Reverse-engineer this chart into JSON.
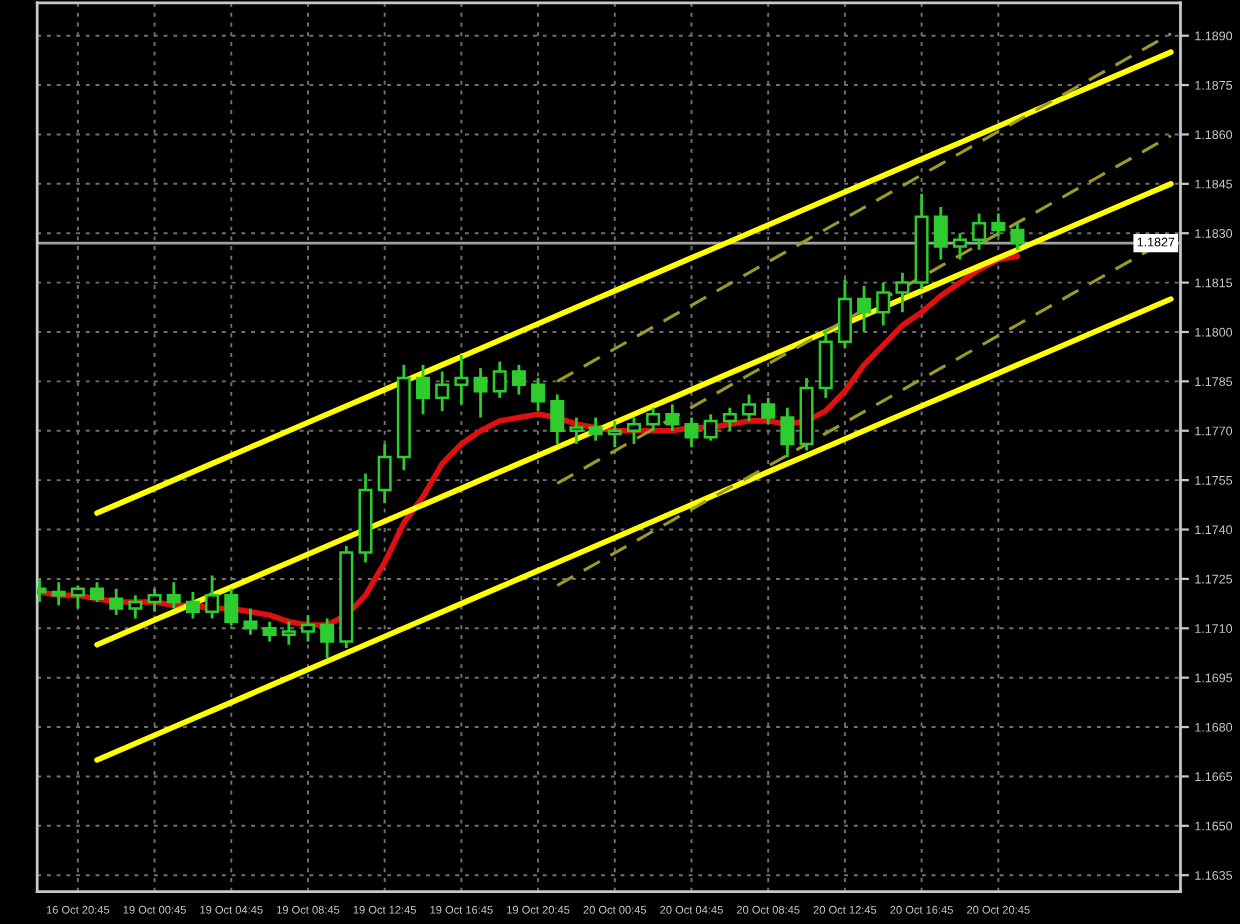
{
  "chart_data": {
    "type": "candlestick",
    "color": "#2ecc2e",
    "categories": [
      null,
      null,
      "16 Oct 20:45",
      null,
      null,
      null,
      "19 Oct 00:45",
      null,
      null,
      null,
      "19 Oct 04:45",
      null,
      null,
      null,
      "19 Oct 08:45",
      null,
      null,
      null,
      "19 Oct 12:45",
      null,
      null,
      null,
      "19 Oct 16:45",
      null,
      null,
      null,
      "19 Oct 20:45",
      null,
      null,
      null,
      "20 Oct 00:45",
      null,
      null,
      null,
      "20 Oct 04:45",
      null,
      null,
      null,
      "20 Oct 08:45",
      null,
      null,
      null,
      "20 Oct 12:45",
      null,
      null,
      null,
      "20 Oct 16:45",
      null,
      null,
      null,
      "20 Oct 20:45",
      null,
      null,
      null,
      null,
      null,
      null,
      null,
      null,
      null
    ],
    "ohlc": [
      [
        1.1722,
        1.1725,
        1.1718,
        1.1721
      ],
      [
        1.1721,
        1.1724,
        1.1717,
        1.172
      ],
      [
        1.172,
        1.1723,
        1.1716,
        1.1722
      ],
      [
        1.1722,
        1.1724,
        1.1718,
        1.1719
      ],
      [
        1.1719,
        1.1722,
        1.1714,
        1.1716
      ],
      [
        1.1716,
        1.172,
        1.1713,
        1.1718
      ],
      [
        1.1718,
        1.1722,
        1.1715,
        1.172
      ],
      [
        1.172,
        1.1724,
        1.1716,
        1.1718
      ],
      [
        1.1718,
        1.1721,
        1.1713,
        1.1715
      ],
      [
        1.1715,
        1.1726,
        1.1713,
        1.172
      ],
      [
        1.172,
        1.1722,
        1.1711,
        1.1712
      ],
      [
        1.1712,
        1.1716,
        1.1708,
        1.171
      ],
      [
        1.171,
        1.1712,
        1.1706,
        1.1708
      ],
      [
        1.1708,
        1.1712,
        1.1705,
        1.1709
      ],
      [
        1.1709,
        1.1714,
        1.1706,
        1.1711
      ],
      [
        1.1711,
        1.1713,
        1.1701,
        1.1706
      ],
      [
        1.1706,
        1.1735,
        1.1704,
        1.1733
      ],
      [
        1.1733,
        1.1757,
        1.173,
        1.1752
      ],
      [
        1.1752,
        1.1766,
        1.1748,
        1.1762
      ],
      [
        1.1762,
        1.179,
        1.1758,
        1.1786
      ],
      [
        1.1786,
        1.179,
        1.1775,
        1.178
      ],
      [
        1.178,
        1.1788,
        1.1776,
        1.1784
      ],
      [
        1.1784,
        1.1793,
        1.1778,
        1.1786
      ],
      [
        1.1786,
        1.1789,
        1.1774,
        1.1782
      ],
      [
        1.1782,
        1.1791,
        1.178,
        1.1788
      ],
      [
        1.1788,
        1.179,
        1.1781,
        1.1784
      ],
      [
        1.1784,
        1.1786,
        1.1776,
        1.1779
      ],
      [
        1.1779,
        1.1781,
        1.1766,
        1.177
      ],
      [
        1.177,
        1.1774,
        1.1766,
        1.1771
      ],
      [
        1.1771,
        1.1774,
        1.1767,
        1.1769
      ],
      [
        1.1769,
        1.1773,
        1.1765,
        1.177
      ],
      [
        1.177,
        1.1774,
        1.1766,
        1.1772
      ],
      [
        1.1772,
        1.1777,
        1.177,
        1.1775
      ],
      [
        1.1775,
        1.1778,
        1.177,
        1.1772
      ],
      [
        1.1772,
        1.1774,
        1.1765,
        1.1768
      ],
      [
        1.1768,
        1.1775,
        1.1767,
        1.1773
      ],
      [
        1.1773,
        1.1777,
        1.177,
        1.1775
      ],
      [
        1.1775,
        1.1781,
        1.1773,
        1.1778
      ],
      [
        1.1778,
        1.178,
        1.1772,
        1.1774
      ],
      [
        1.1774,
        1.1777,
        1.1762,
        1.1766
      ],
      [
        1.1766,
        1.1786,
        1.1764,
        1.1783
      ],
      [
        1.1783,
        1.18,
        1.178,
        1.1797
      ],
      [
        1.1797,
        1.1816,
        1.1795,
        1.181
      ],
      [
        1.181,
        1.1814,
        1.18,
        1.1806
      ],
      [
        1.1806,
        1.1815,
        1.1802,
        1.1812
      ],
      [
        1.1812,
        1.1818,
        1.1806,
        1.1815
      ],
      [
        1.1815,
        1.1842,
        1.1813,
        1.1835
      ],
      [
        1.1835,
        1.1838,
        1.1822,
        1.1826
      ],
      [
        1.1826,
        1.183,
        1.1822,
        1.1828
      ],
      [
        1.1828,
        1.1836,
        1.1825,
        1.1833
      ],
      [
        1.1833,
        1.1836,
        1.1829,
        1.1831
      ],
      [
        1.1831,
        1.1833,
        1.1825,
        1.1827
      ],
      null,
      null,
      null,
      null,
      null,
      null,
      null,
      null
    ],
    "series": [
      {
        "type": "line",
        "color": "#e01010",
        "values": [
          1.1721,
          1.172,
          1.172,
          1.1719,
          1.1718,
          1.1718,
          1.1718,
          1.1717,
          1.1717,
          1.1716,
          1.1716,
          1.1715,
          1.1714,
          1.1712,
          1.1711,
          1.1711,
          1.1714,
          1.172,
          1.173,
          1.1742,
          1.175,
          1.176,
          1.1766,
          1.177,
          1.1773,
          1.1774,
          1.1775,
          1.1774,
          1.1772,
          1.1771,
          1.177,
          1.177,
          1.177,
          1.177,
          1.1771,
          1.1771,
          1.1772,
          1.1773,
          1.1773,
          1.1772,
          1.1773,
          1.1776,
          1.1782,
          1.179,
          1.1796,
          1.1802,
          1.1806,
          1.1811,
          1.1815,
          1.1819,
          1.1822,
          1.1823,
          null,
          null,
          null,
          null,
          null,
          null,
          null,
          null
        ]
      },
      {
        "type": "line",
        "color": "#ffff00",
        "values": [
          null,
          null,
          null,
          1.1745,
          1.17475,
          1.175,
          1.17525,
          1.1755,
          1.17575,
          1.176,
          1.17625,
          1.1765,
          1.17675,
          1.177,
          1.17725,
          1.1775,
          1.17775,
          1.178,
          1.17825,
          1.1785,
          1.17875,
          1.179,
          1.17925,
          1.1795,
          1.17975,
          1.18,
          1.18025,
          1.1805,
          1.18075,
          1.181,
          1.18125,
          1.1815,
          1.18175,
          1.182,
          1.18225,
          1.1825,
          1.18275,
          1.183,
          1.18325,
          1.1835,
          1.18375,
          1.184,
          1.18425,
          1.1845,
          1.18475,
          1.185,
          1.18525,
          1.1855,
          1.18575,
          1.186,
          1.18625,
          1.1865,
          1.18675,
          1.187,
          1.18725,
          1.1875,
          1.18775,
          1.188,
          1.18825,
          1.1885
        ]
      },
      {
        "type": "line",
        "color": "#ffff00",
        "values": [
          null,
          null,
          null,
          1.1705,
          1.17075,
          1.171,
          1.17125,
          1.1715,
          1.17175,
          1.172,
          1.17225,
          1.1725,
          1.17275,
          1.173,
          1.17325,
          1.1735,
          1.17375,
          1.174,
          1.17425,
          1.1745,
          1.17475,
          1.175,
          1.17525,
          1.1755,
          1.17575,
          1.176,
          1.17625,
          1.1765,
          1.17675,
          1.177,
          1.17725,
          1.1775,
          1.17775,
          1.178,
          1.17825,
          1.1785,
          1.17875,
          1.179,
          1.17925,
          1.1795,
          1.17975,
          1.18,
          1.18025,
          1.1805,
          1.18075,
          1.181,
          1.18125,
          1.1815,
          1.18175,
          1.182,
          1.18225,
          1.1825,
          1.18275,
          1.183,
          1.18325,
          1.1835,
          1.18375,
          1.184,
          1.18425,
          1.1845
        ]
      },
      {
        "type": "line",
        "color": "#ffff00",
        "values": [
          null,
          null,
          null,
          1.167,
          1.16725,
          1.1675,
          1.16775,
          1.168,
          1.16825,
          1.1685,
          1.16875,
          1.169,
          1.16925,
          1.1695,
          1.16975,
          1.17,
          1.17025,
          1.1705,
          1.17075,
          1.171,
          1.17125,
          1.1715,
          1.17175,
          1.172,
          1.17225,
          1.1725,
          1.17275,
          1.173,
          1.17325,
          1.1735,
          1.17375,
          1.174,
          1.17425,
          1.1745,
          1.17475,
          1.175,
          1.17525,
          1.1755,
          1.17575,
          1.176,
          1.17625,
          1.1765,
          1.17675,
          1.177,
          1.17725,
          1.1775,
          1.17775,
          1.178,
          1.17825,
          1.1785,
          1.17875,
          1.179,
          1.17925,
          1.1795,
          1.17975,
          1.18,
          1.18025,
          1.1805,
          1.18075,
          1.181
        ]
      },
      {
        "type": "line",
        "color": "#9a9a2a",
        "line_style": "dashed",
        "values": [
          null,
          null,
          null,
          null,
          null,
          null,
          null,
          null,
          null,
          null,
          null,
          null,
          null,
          null,
          null,
          null,
          null,
          null,
          null,
          null,
          null,
          null,
          null,
          null,
          null,
          null,
          null,
          1.1785,
          1.17883,
          1.17916,
          1.17949,
          1.17982,
          1.18015,
          1.18048,
          1.18081,
          1.18114,
          1.18147,
          1.1818,
          1.18213,
          1.18246,
          1.18279,
          1.18312,
          1.18345,
          1.18378,
          1.18411,
          1.18444,
          1.18477,
          1.1851,
          1.18543,
          1.18576,
          1.18609,
          1.18642,
          1.18675,
          1.18708,
          1.18741,
          1.18774,
          1.18807,
          1.1884,
          1.18873,
          1.18906
        ]
      },
      {
        "type": "line",
        "color": "#9a9a2a",
        "line_style": "dashed",
        "values": [
          null,
          null,
          null,
          null,
          null,
          null,
          null,
          null,
          null,
          null,
          null,
          null,
          null,
          null,
          null,
          null,
          null,
          null,
          null,
          null,
          null,
          null,
          null,
          null,
          null,
          null,
          null,
          1.1754,
          1.17573,
          1.17606,
          1.17639,
          1.17672,
          1.17705,
          1.17738,
          1.17771,
          1.17804,
          1.17837,
          1.1787,
          1.17903,
          1.17936,
          1.17969,
          1.18002,
          1.18035,
          1.18068,
          1.18101,
          1.18134,
          1.18167,
          1.182,
          1.18233,
          1.18266,
          1.18299,
          1.18332,
          1.18365,
          1.18398,
          1.18431,
          1.18464,
          1.18497,
          1.1853,
          1.18563,
          1.18596
        ]
      },
      {
        "type": "line",
        "color": "#9a9a2a",
        "line_style": "dashed",
        "values": [
          null,
          null,
          null,
          null,
          null,
          null,
          null,
          null,
          null,
          null,
          null,
          null,
          null,
          null,
          null,
          null,
          null,
          null,
          null,
          null,
          null,
          null,
          null,
          null,
          null,
          null,
          null,
          1.1723,
          1.17263,
          1.17296,
          1.17329,
          1.17362,
          1.17395,
          1.17428,
          1.17461,
          1.17494,
          1.17527,
          1.1756,
          1.17593,
          1.17626,
          1.17659,
          1.17692,
          1.17725,
          1.17758,
          1.17791,
          1.17824,
          1.17857,
          1.1789,
          1.17923,
          1.17956,
          1.17989,
          1.18022,
          1.18055,
          1.18088,
          1.18121,
          1.18154,
          1.18187,
          1.1822,
          1.18253,
          null
        ]
      }
    ],
    "ref_lines": [
      {
        "axis": "y",
        "value": 1.1827,
        "label": "1.1827",
        "color": "#a0a0a0"
      }
    ],
    "ylim": [
      1.163,
      1.19
    ],
    "yticks": [
      {
        "value": 1.189,
        "label": "1.1890"
      },
      {
        "value": 1.1875,
        "label": "1.1875"
      },
      {
        "value": 1.186,
        "label": "1.1860"
      },
      {
        "value": 1.1845,
        "label": "1.1845"
      },
      {
        "value": 1.183,
        "label": "1.1830"
      },
      {
        "value": 1.1815,
        "label": "1.1815"
      },
      {
        "value": 1.18,
        "label": "1.1800"
      },
      {
        "value": 1.1785,
        "label": "1.1785"
      },
      {
        "value": 1.177,
        "label": "1.1770"
      },
      {
        "value": 1.1755,
        "label": "1.1755"
      },
      {
        "value": 1.174,
        "label": "1.1740"
      },
      {
        "value": 1.1725,
        "label": "1.1725"
      },
      {
        "value": 1.171,
        "label": "1.1710"
      },
      {
        "value": 1.1695,
        "label": "1.1695"
      },
      {
        "value": 1.168,
        "label": "1.1680"
      },
      {
        "value": 1.1665,
        "label": "1.1665"
      },
      {
        "value": 1.165,
        "label": "1.1650"
      },
      {
        "value": 1.1635,
        "label": "1.1635"
      }
    ],
    "grid": true
  }
}
